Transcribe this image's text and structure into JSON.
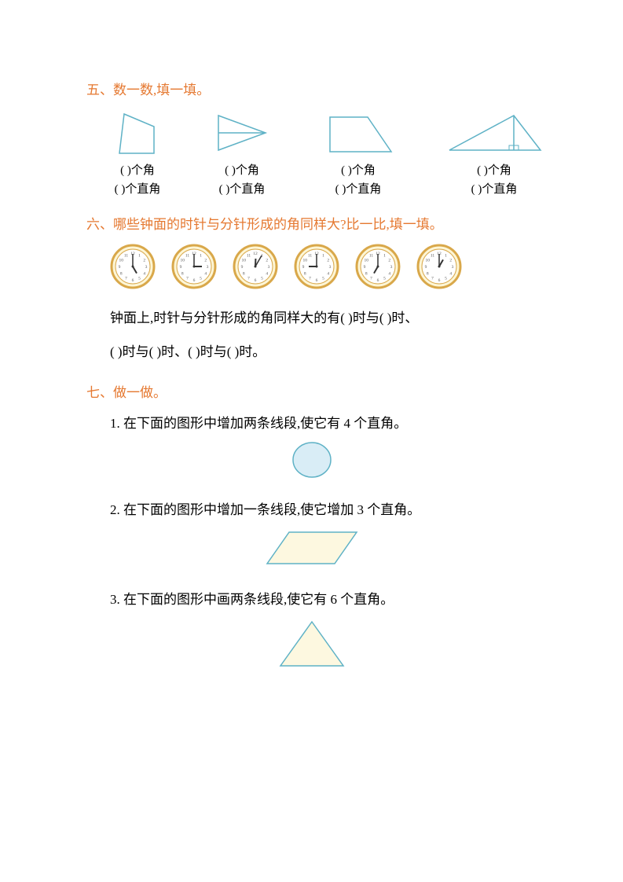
{
  "colors": {
    "header": "#e57830",
    "shapeStroke": "#5fb2c6",
    "shapeFillLight": "#e3f0f5",
    "shapeFillYellow": "#fdf8e0",
    "shapeFillBlue": "#d9edf6",
    "clockBorder": "#d9a84a",
    "clockFace": "#fdf6d6",
    "clockHand": "#333333",
    "clockTick": "#555555"
  },
  "section5": {
    "title": "五、数一数,填一填。",
    "labels": {
      "angles": "(      )个角",
      "rightAngles": "(      )个直角"
    },
    "shapes": [
      {
        "id": "quad"
      },
      {
        "id": "triangle-inner"
      },
      {
        "id": "trapezoid"
      },
      {
        "id": "triangle-split"
      }
    ]
  },
  "section6": {
    "title": "六、哪些钟面的时针与分针形成的角同样大?比一比,填一填。",
    "clocks": [
      {
        "hour": 5,
        "minute": 0
      },
      {
        "hour": 3,
        "minute": 0
      },
      {
        "hour": 12,
        "minute": 5
      },
      {
        "hour": 9,
        "minute": 0
      },
      {
        "hour": 7,
        "minute": 0
      },
      {
        "hour": 1,
        "minute": 0
      }
    ],
    "line1": "钟面上,时针与分针形成的角同样大的有(      )时与(      )时、",
    "line2": "(      )时与(      )时、(      )时与(      )时。"
  },
  "section7": {
    "title": "七、做一做。",
    "q1": "1. 在下面的图形中增加两条线段,使它有 4 个直角。",
    "q2": "2. 在下面的图形中增加一条线段,使它增加 3 个直角。",
    "q3": "3. 在下面的图形中画两条线段,使它有 6 个直角。"
  }
}
